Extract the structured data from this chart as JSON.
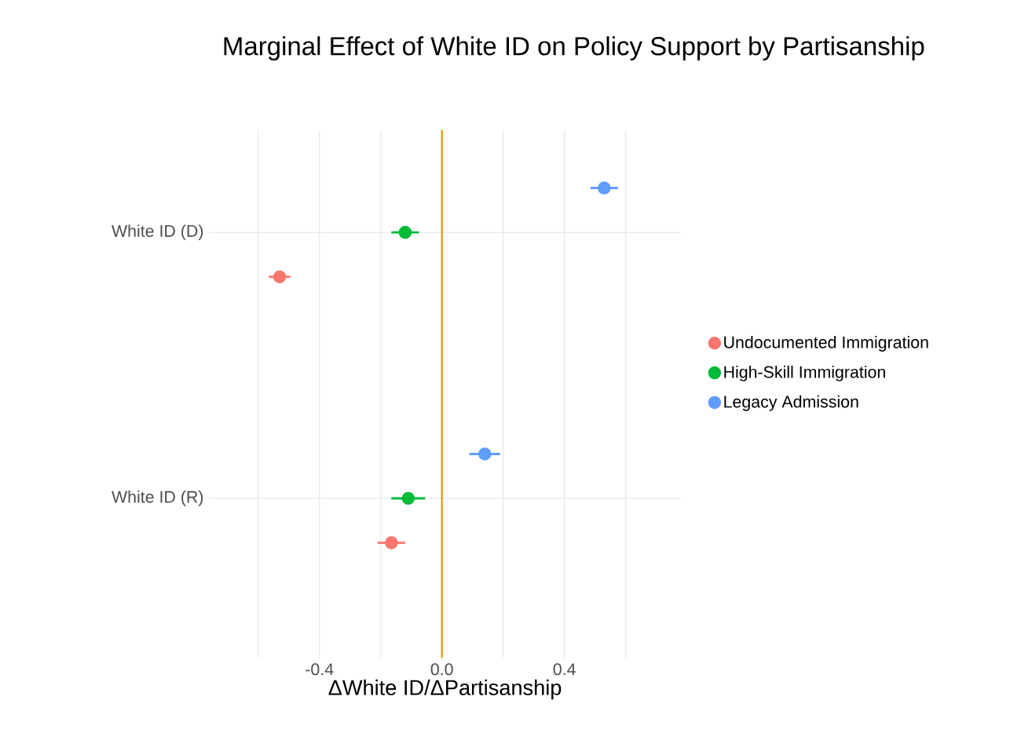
{
  "chart_data": {
    "type": "scatter",
    "orientation": "horizontal",
    "title": "Marginal Effect of White ID on Policy Support by Partisanship",
    "xlabel": "ΔWhite ID/ΔPartisanship",
    "categories": [
      "White ID (D)",
      "White ID (R)"
    ],
    "series": [
      {
        "name": "Undocumented Immigration",
        "color": "#f8766d",
        "values": [
          -0.53,
          -0.165
        ],
        "errors": [
          0.035,
          0.045
        ]
      },
      {
        "name": "High-Skill Immigration",
        "color": "#00ba38",
        "values": [
          -0.12,
          -0.11
        ],
        "errors": [
          0.045,
          0.055
        ]
      },
      {
        "name": "Legacy Admission",
        "color": "#619cff",
        "values": [
          0.53,
          0.14
        ],
        "errors": [
          0.045,
          0.05
        ]
      }
    ],
    "xlim": [
      -0.76,
      0.78
    ],
    "xticks": [
      {
        "value": -0.6,
        "label": null
      },
      -0.4,
      {
        "value": -0.2,
        "label": null
      },
      {
        "value": 0,
        "label": "0.0"
      },
      {
        "value": 0.2,
        "label": null
      },
      0.4,
      {
        "value": 0.6,
        "label": null
      }
    ],
    "ref_lines": [
      {
        "axis": "x",
        "value": 0,
        "color": "#e69f00"
      }
    ],
    "grid": true,
    "legend": "right"
  }
}
